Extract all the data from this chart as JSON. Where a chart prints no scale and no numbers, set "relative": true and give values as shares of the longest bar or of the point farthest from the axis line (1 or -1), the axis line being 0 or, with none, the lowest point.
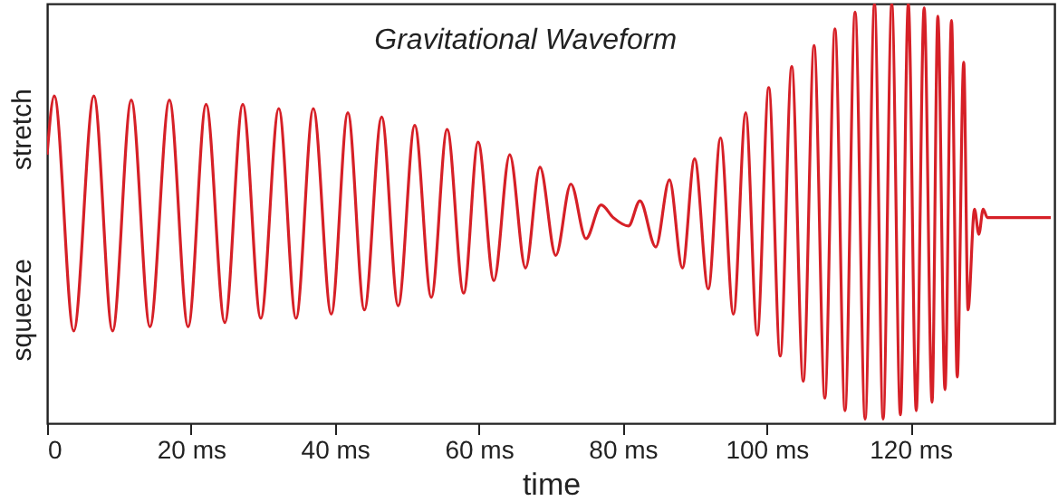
{
  "chart_data": {
    "type": "line",
    "title": "Gravitational Waveform",
    "xlabel": "time",
    "relative": true,
    "color": "#d62027",
    "marker": "none",
    "line_style": "solid",
    "tick_labels": "x",
    "annotations": [
      "stretch",
      "squeeze"
    ],
    "xlim": [
      0,
      140
    ],
    "xticks": [
      0,
      {
        "value": 20,
        "label": "20 ms"
      },
      {
        "value": 40,
        "label": "40 ms"
      },
      {
        "value": 60,
        "label": "60 ms"
      },
      {
        "value": 80,
        "label": "80 ms"
      },
      {
        "value": 100,
        "label": "100 ms"
      },
      {
        "value": 120,
        "label": "120 ms"
      }
    ],
    "x": [
      0,
      1.0,
      3.7,
      6.5,
      9.1,
      11.7,
      14.3,
      17.0,
      19.6,
      22.1,
      24.7,
      27.2,
      29.7,
      32.2,
      34.6,
      37.0,
      39.5,
      41.8,
      44.1,
      46.5,
      48.8,
      51.1,
      53.4,
      55.6,
      57.9,
      59.9,
      62.1,
      64.3,
      66.5,
      68.5,
      70.7,
      72.8,
      74.9,
      77.0,
      78.7,
      80.8,
      82.4,
      84.6,
      86.5,
      88.3,
      90.0,
      91.9,
      93.6,
      95.4,
      97.1,
      98.7,
      100.3,
      101.9,
      103.5,
      105.1,
      106.6,
      108.1,
      109.5,
      110.9,
      112.3,
      113.7,
      115.0,
      116.2,
      117.4,
      118.6,
      119.7,
      120.8,
      121.9,
      123.0,
      123.8,
      124.8,
      125.7,
      126.5,
      127.4,
      128.0,
      128.9,
      129.5,
      130.1,
      130.7,
      139.5
    ],
    "values": [
      0.64,
      0.78,
      0.22,
      0.78,
      0.22,
      0.77,
      0.23,
      0.77,
      0.23,
      0.76,
      0.24,
      0.76,
      0.25,
      0.75,
      0.25,
      0.75,
      0.26,
      0.74,
      0.27,
      0.73,
      0.28,
      0.71,
      0.3,
      0.7,
      0.31,
      0.67,
      0.34,
      0.64,
      0.37,
      0.61,
      0.4,
      0.57,
      0.44,
      0.52,
      0.49,
      0.47,
      0.53,
      0.42,
      0.58,
      0.37,
      0.63,
      0.32,
      0.68,
      0.26,
      0.74,
      0.21,
      0.8,
      0.16,
      0.85,
      0.1,
      0.9,
      0.06,
      0.94,
      0.03,
      0.98,
      0.01,
      1.0,
      0.01,
      1.0,
      0.02,
      1.0,
      0.03,
      0.99,
      0.05,
      0.97,
      0.08,
      0.96,
      0.11,
      0.86,
      0.27,
      0.51,
      0.45,
      0.51,
      0.49,
      0.49
    ]
  }
}
